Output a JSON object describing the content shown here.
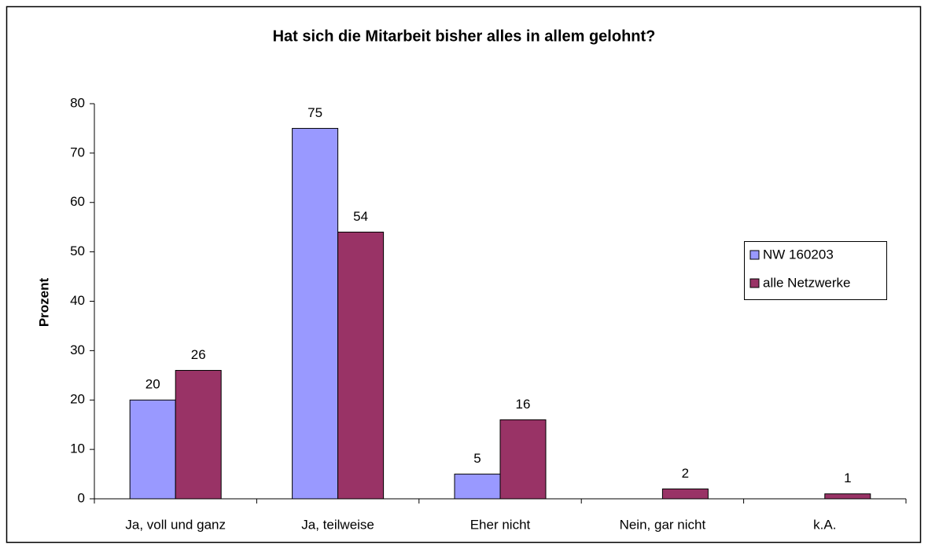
{
  "chart_data": {
    "type": "bar",
    "title": "Hat sich die Mitarbeit bisher alles in allem gelohnt?",
    "y_label": "Prozent",
    "categories": [
      "Ja, voll und ganz",
      "Ja, teilweise",
      "Eher nicht",
      "Nein, gar nicht",
      "k.A."
    ],
    "series": [
      {
        "name": "NW 160203",
        "color": "#9999ff",
        "values": [
          20,
          75,
          5,
          null,
          null
        ]
      },
      {
        "name": "alle Netzwerke",
        "color": "#993366",
        "values": [
          26,
          54,
          16,
          2,
          1
        ]
      }
    ],
    "ylim": [
      0,
      80
    ],
    "yticks": [
      0,
      10,
      20,
      30,
      40,
      50,
      60,
      70,
      80
    ],
    "grid": false,
    "legend": "right"
  }
}
